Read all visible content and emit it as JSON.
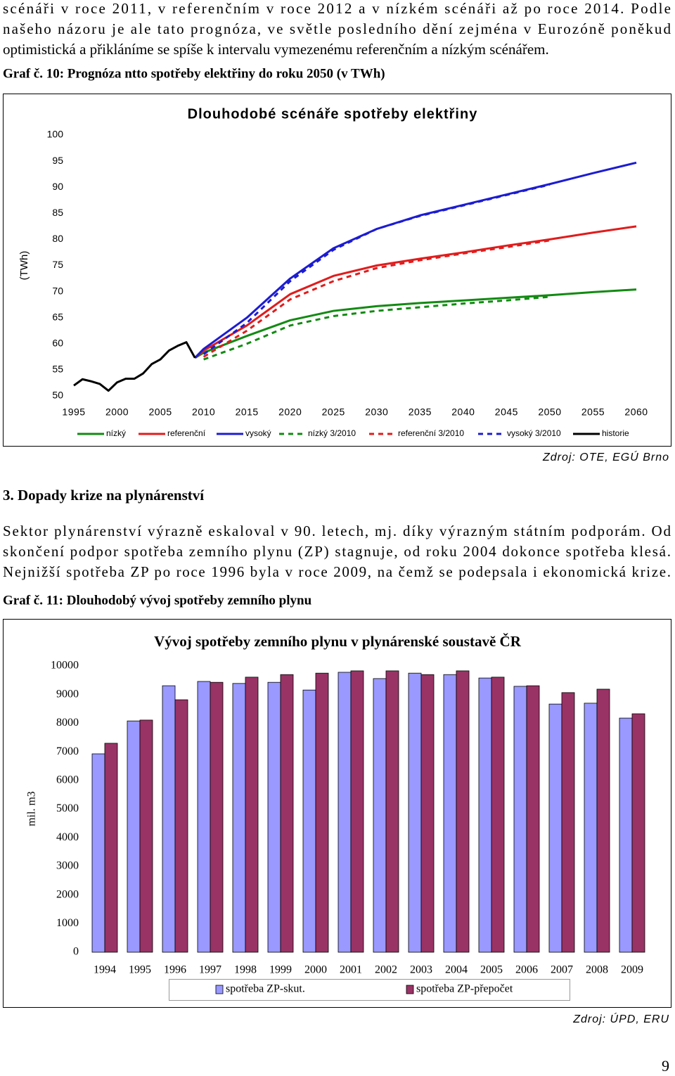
{
  "text_top": [
    "scénáři v roce 2011, v referenčním v roce 2012 a v nízkém scénáři až po roce 2014. Podle",
    "našeho názoru je ale tato prognóza, ve světle posledního dění zejména v Eurozóně poněkud",
    "optimistická a přikláníme se spíše k intervalu vymezenému referenčním a nízkým scénářem."
  ],
  "caption_1": "Graf č. 10: Prognóza ntto spotřeby elektřiny do roku 2050 (v TWh)",
  "chart_data": [
    {
      "type": "line",
      "title": "Dlouhodobé scénáře spotřeby elektřiny",
      "y_label": "(TWh)",
      "x": [
        1995,
        1996,
        1997,
        1998,
        1999,
        2000,
        2001,
        2002,
        2003,
        2004,
        2005,
        2006,
        2007,
        2008,
        2009,
        2010,
        2015,
        2020,
        2025,
        2030,
        2035,
        2040,
        2045,
        2050,
        2055,
        2060
      ],
      "xlim": [
        1995,
        2060
      ],
      "xticks": [
        1995,
        2000,
        2005,
        2010,
        2015,
        2020,
        2025,
        2030,
        2035,
        2040,
        2045,
        2050,
        2055,
        2060
      ],
      "ylim": [
        50,
        100
      ],
      "yticks": [
        50,
        55,
        60,
        65,
        70,
        75,
        80,
        85,
        90,
        95,
        100
      ],
      "series": [
        {
          "name": "nízký",
          "color": "#138a13",
          "style": "solid",
          "values": [
            null,
            null,
            null,
            null,
            null,
            null,
            null,
            null,
            null,
            null,
            null,
            null,
            null,
            null,
            57.3,
            58.3,
            61.5,
            64.5,
            66.3,
            67.2,
            67.8,
            68.3,
            68.8,
            69.3,
            69.9,
            70.4
          ]
        },
        {
          "name": "referenční",
          "color": "#e01c1c",
          "style": "solid",
          "values": [
            null,
            null,
            null,
            null,
            null,
            null,
            null,
            null,
            null,
            null,
            null,
            null,
            null,
            null,
            57.3,
            58.7,
            63.5,
            69.5,
            73,
            75,
            76.3,
            77.5,
            78.8,
            80,
            81.3,
            82.5
          ]
        },
        {
          "name": "vysoký",
          "color": "#1c1cd2",
          "style": "solid",
          "values": [
            null,
            null,
            null,
            null,
            null,
            null,
            null,
            null,
            null,
            null,
            null,
            null,
            null,
            null,
            57.3,
            59,
            65,
            72.5,
            78.3,
            82,
            84.6,
            86.6,
            88.6,
            90.6,
            92.7,
            94.7
          ]
        },
        {
          "name": "nízký 3/2010",
          "color": "#138a13",
          "style": "dashed",
          "values": [
            null,
            null,
            null,
            null,
            null,
            null,
            null,
            null,
            null,
            null,
            null,
            null,
            null,
            null,
            null,
            57,
            60,
            63.5,
            65.3,
            66.3,
            67,
            67.7,
            68.3,
            69,
            null,
            null
          ]
        },
        {
          "name": "referenční 3/2010",
          "color": "#e01c1c",
          "style": "dashed",
          "values": [
            null,
            null,
            null,
            null,
            null,
            null,
            null,
            null,
            null,
            null,
            null,
            null,
            null,
            null,
            null,
            57.5,
            62.5,
            68.5,
            72,
            74.5,
            76,
            77.3,
            78.5,
            79.8,
            null,
            null
          ]
        },
        {
          "name": "vysoký 3/2010",
          "color": "#1c1cd2",
          "style": "dashed",
          "values": [
            null,
            null,
            null,
            null,
            null,
            null,
            null,
            null,
            null,
            null,
            null,
            null,
            null,
            null,
            null,
            58,
            64,
            72,
            78,
            82,
            84.5,
            86.5,
            88.5,
            90.5,
            null,
            null
          ]
        },
        {
          "name": "historie",
          "color": "#000000",
          "style": "solid",
          "values": [
            52,
            53.2,
            52.8,
            52.3,
            51,
            52.6,
            53.3,
            53.3,
            54.3,
            56.1,
            57,
            58.7,
            59.6,
            60.3,
            57.3,
            null,
            null,
            null,
            null,
            null,
            null,
            null,
            null,
            null,
            null,
            null
          ]
        }
      ]
    },
    {
      "type": "bar",
      "title": "Vývoj spotřeby zemního plynu v plynárenské soustavě ČR",
      "y_label": "mil. m3",
      "categories": [
        "1994",
        "1995",
        "1996",
        "1997",
        "1998",
        "1999",
        "2000",
        "2001",
        "2002",
        "2003",
        "2004",
        "2005",
        "2006",
        "2007",
        "2008",
        "2009"
      ],
      "ylim": [
        0,
        10000
      ],
      "yticks": [
        0,
        1000,
        2000,
        3000,
        4000,
        5000,
        6000,
        7000,
        8000,
        9000,
        10000
      ],
      "series": [
        {
          "name": "spotřeba ZP-skut.",
          "color": "#9999ff",
          "values": [
            6930,
            8080,
            9310,
            9460,
            9390,
            9430,
            9160,
            9780,
            9560,
            9750,
            9700,
            9580,
            9290,
            8670,
            8700,
            8180
          ]
        },
        {
          "name": "spotřeba ZP-přepočet",
          "color": "#993366",
          "values": [
            7300,
            8110,
            8820,
            9430,
            9610,
            9700,
            9750,
            9830,
            9830,
            9700,
            9830,
            9610,
            9310,
            9070,
            9190,
            8330
          ]
        }
      ]
    }
  ],
  "source_1": "Zdroj: OTE, EGÚ Brno",
  "heading": "3. Dopady krize na plynárenství",
  "text_middle": [
    "Sektor plynárenství výrazně eskaloval v 90. letech, mj. díky výrazným státním podporám. Od",
    "skončení podpor spotřeba zemního plynu (ZP) stagnuje, od roku 2004 dokonce spotřeba klesá.",
    "Nejnižší spotřeba ZP po roce 1996 byla v roce 2009, na čemž se podepsala i ekonomická krize."
  ],
  "caption_2": "Graf č. 11: Dlouhodobý vývoj spotřeby zemního plynu",
  "source_2": "Zdroj: ÚPD, ERU",
  "page_number": "9"
}
